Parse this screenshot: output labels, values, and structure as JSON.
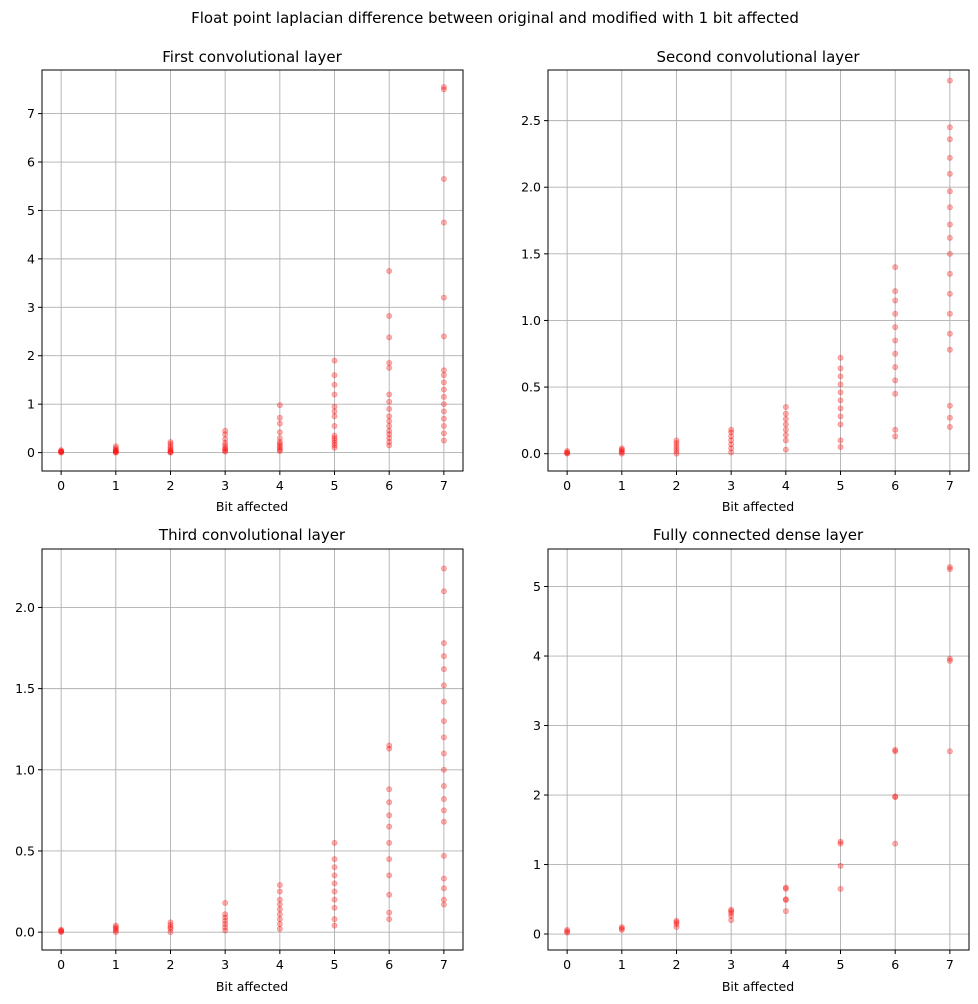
{
  "figure": {
    "suptitle": "Float point laplacian difference between original and modified with 1 bit affected"
  },
  "colors": {
    "points": "#ff0000",
    "grid": "#b0b0b0"
  },
  "chart_data": [
    {
      "type": "scatter",
      "title": "First convolutional layer",
      "xlabel": "Bit affected",
      "ylabel": "",
      "xlim": [
        -0.35,
        7.35
      ],
      "ylim": [
        -0.38,
        7.9
      ],
      "xticks": [
        0,
        1,
        2,
        3,
        4,
        5,
        6,
        7
      ],
      "yticks": [
        0,
        1,
        2,
        3,
        4,
        5,
        6,
        7
      ],
      "grid": true,
      "points": [
        {
          "x": 0,
          "y": [
            0,
            0.01,
            0.02,
            0.03,
            0.05
          ]
        },
        {
          "x": 1,
          "y": [
            0,
            0.01,
            0.02,
            0.04,
            0.06,
            0.09,
            0.13
          ]
        },
        {
          "x": 2,
          "y": [
            0,
            0.01,
            0.03,
            0.06,
            0.09,
            0.13,
            0.18,
            0.22
          ]
        },
        {
          "x": 3,
          "y": [
            0.02,
            0.04,
            0.07,
            0.1,
            0.15,
            0.2,
            0.28,
            0.38,
            0.45
          ]
        },
        {
          "x": 4,
          "y": [
            0.03,
            0.06,
            0.1,
            0.14,
            0.18,
            0.22,
            0.3,
            0.42,
            0.6,
            0.72,
            0.98
          ]
        },
        {
          "x": 5,
          "y": [
            0.1,
            0.15,
            0.2,
            0.25,
            0.3,
            0.35,
            0.55,
            0.75,
            0.85,
            0.95,
            1.2,
            1.4,
            1.6,
            1.9
          ]
        },
        {
          "x": 6,
          "y": [
            0.15,
            0.22,
            0.3,
            0.38,
            0.45,
            0.55,
            0.65,
            0.75,
            0.9,
            1.05,
            1.2,
            1.75,
            1.85,
            2.38,
            2.82,
            3.75
          ]
        },
        {
          "x": 7,
          "y": [
            0.25,
            0.4,
            0.55,
            0.7,
            0.85,
            1.0,
            1.15,
            1.3,
            1.45,
            1.6,
            1.7,
            2.4,
            3.2,
            4.75,
            5.65,
            7.5,
            7.55
          ]
        }
      ]
    },
    {
      "type": "scatter",
      "title": "Second convolutional layer",
      "xlabel": "Bit affected",
      "ylabel": "",
      "xlim": [
        -0.35,
        7.35
      ],
      "ylim": [
        -0.13,
        2.88
      ],
      "xticks": [
        0,
        1,
        2,
        3,
        4,
        5,
        6,
        7
      ],
      "yticks": [
        0.0,
        0.5,
        1.0,
        1.5,
        2.0,
        2.5
      ],
      "grid": true,
      "points": [
        {
          "x": 0,
          "y": [
            0,
            0.005,
            0.01,
            0.02
          ]
        },
        {
          "x": 1,
          "y": [
            0,
            0.01,
            0.02,
            0.03,
            0.04
          ]
        },
        {
          "x": 2,
          "y": [
            0,
            0.02,
            0.04,
            0.06,
            0.08,
            0.1
          ]
        },
        {
          "x": 3,
          "y": [
            0.01,
            0.04,
            0.07,
            0.1,
            0.13,
            0.16,
            0.18
          ]
        },
        {
          "x": 4,
          "y": [
            0.03,
            0.1,
            0.14,
            0.18,
            0.22,
            0.26,
            0.3,
            0.35
          ]
        },
        {
          "x": 5,
          "y": [
            0.05,
            0.1,
            0.22,
            0.28,
            0.34,
            0.4,
            0.46,
            0.52,
            0.58,
            0.64,
            0.72
          ]
        },
        {
          "x": 6,
          "y": [
            0.13,
            0.18,
            0.45,
            0.55,
            0.65,
            0.75,
            0.85,
            0.95,
            1.05,
            1.15,
            1.22,
            1.4
          ]
        },
        {
          "x": 7,
          "y": [
            0.2,
            0.27,
            0.36,
            0.78,
            0.9,
            1.05,
            1.2,
            1.35,
            1.5,
            1.62,
            1.72,
            1.85,
            1.97,
            2.1,
            2.22,
            2.36,
            2.45,
            2.8
          ]
        }
      ]
    },
    {
      "type": "scatter",
      "title": "Third convolutional layer",
      "xlabel": "Bit affected",
      "ylabel": "",
      "xlim": [
        -0.35,
        7.35
      ],
      "ylim": [
        -0.11,
        2.36
      ],
      "xticks": [
        0,
        1,
        2,
        3,
        4,
        5,
        6,
        7
      ],
      "yticks": [
        0.0,
        0.5,
        1.0,
        1.5,
        2.0
      ],
      "grid": true,
      "points": [
        {
          "x": 0,
          "y": [
            0,
            0.005,
            0.01,
            0.015
          ]
        },
        {
          "x": 1,
          "y": [
            0,
            0.01,
            0.02,
            0.03,
            0.04
          ]
        },
        {
          "x": 2,
          "y": [
            0,
            0.02,
            0.03,
            0.045,
            0.06
          ]
        },
        {
          "x": 3,
          "y": [
            0.01,
            0.03,
            0.05,
            0.07,
            0.09,
            0.11,
            0.18
          ]
        },
        {
          "x": 4,
          "y": [
            0.02,
            0.05,
            0.08,
            0.11,
            0.14,
            0.17,
            0.2,
            0.25,
            0.29
          ]
        },
        {
          "x": 5,
          "y": [
            0.04,
            0.08,
            0.15,
            0.2,
            0.25,
            0.3,
            0.35,
            0.4,
            0.45,
            0.55
          ]
        },
        {
          "x": 6,
          "y": [
            0.08,
            0.12,
            0.23,
            0.35,
            0.45,
            0.55,
            0.65,
            0.72,
            0.8,
            0.88,
            1.13,
            1.15
          ]
        },
        {
          "x": 7,
          "y": [
            0.17,
            0.2,
            0.27,
            0.33,
            0.47,
            0.68,
            0.75,
            0.82,
            0.9,
            1.0,
            1.1,
            1.2,
            1.3,
            1.42,
            1.52,
            1.62,
            1.7,
            1.78,
            2.1,
            2.24
          ]
        }
      ]
    },
    {
      "type": "scatter",
      "title": "Fully connected dense layer",
      "xlabel": "Bit affected",
      "ylabel": "",
      "xlim": [
        -0.35,
        7.35
      ],
      "ylim": [
        -0.23,
        5.54
      ],
      "xticks": [
        0,
        1,
        2,
        3,
        4,
        5,
        6,
        7
      ],
      "yticks": [
        0,
        1,
        2,
        3,
        4,
        5
      ],
      "grid": true,
      "points": [
        {
          "x": 0,
          "y": [
            0.02,
            0.04,
            0.06
          ]
        },
        {
          "x": 1,
          "y": [
            0.06,
            0.08,
            0.1
          ]
        },
        {
          "x": 2,
          "y": [
            0.1,
            0.14,
            0.17,
            0.19
          ]
        },
        {
          "x": 3,
          "y": [
            0.2,
            0.26,
            0.3,
            0.33,
            0.35
          ]
        },
        {
          "x": 4,
          "y": [
            0.33,
            0.49,
            0.5,
            0.65,
            0.67
          ]
        },
        {
          "x": 5,
          "y": [
            0.65,
            0.98,
            1.3,
            1.33
          ]
        },
        {
          "x": 6,
          "y": [
            1.3,
            1.97,
            1.98,
            2.63,
            2.65
          ]
        },
        {
          "x": 7,
          "y": [
            2.63,
            3.93,
            3.96,
            5.25,
            5.28
          ]
        }
      ]
    }
  ]
}
